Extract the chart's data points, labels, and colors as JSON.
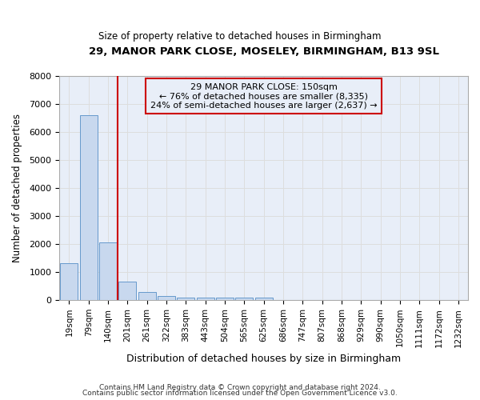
{
  "title_line1": "29, MANOR PARK CLOSE, MOSELEY, BIRMINGHAM, B13 9SL",
  "title_line2": "Size of property relative to detached houses in Birmingham",
  "xlabel": "Distribution of detached houses by size in Birmingham",
  "ylabel": "Number of detached properties",
  "footer_line1": "Contains HM Land Registry data © Crown copyright and database right 2024.",
  "footer_line2": "Contains public sector information licensed under the Open Government Licence v3.0.",
  "annotation_line1": "29 MANOR PARK CLOSE: 150sqm",
  "annotation_line2": "← 76% of detached houses are smaller (8,335)",
  "annotation_line3": "24% of semi-detached houses are larger (2,637) →",
  "bar_categories": [
    "19sqm",
    "79sqm",
    "140sqm",
    "201sqm",
    "261sqm",
    "322sqm",
    "383sqm",
    "443sqm",
    "504sqm",
    "565sqm",
    "625sqm",
    "686sqm",
    "747sqm",
    "807sqm",
    "868sqm",
    "929sqm",
    "990sqm",
    "1050sqm",
    "1111sqm",
    "1172sqm",
    "1232sqm"
  ],
  "bar_values": [
    1310,
    6620,
    2060,
    650,
    295,
    145,
    105,
    85,
    100,
    85,
    100,
    0,
    0,
    0,
    0,
    0,
    0,
    0,
    0,
    0,
    0
  ],
  "bar_color": "#c8d8ee",
  "bar_edge_color": "#6699cc",
  "vline_color": "#cc0000",
  "vline_x_pos": 2.5,
  "grid_color": "#dddddd",
  "ylim": [
    0,
    8000
  ],
  "yticks": [
    0,
    1000,
    2000,
    3000,
    4000,
    5000,
    6000,
    7000,
    8000
  ],
  "background_color": "#ffffff",
  "plot_bg_color": "#e8eef8"
}
